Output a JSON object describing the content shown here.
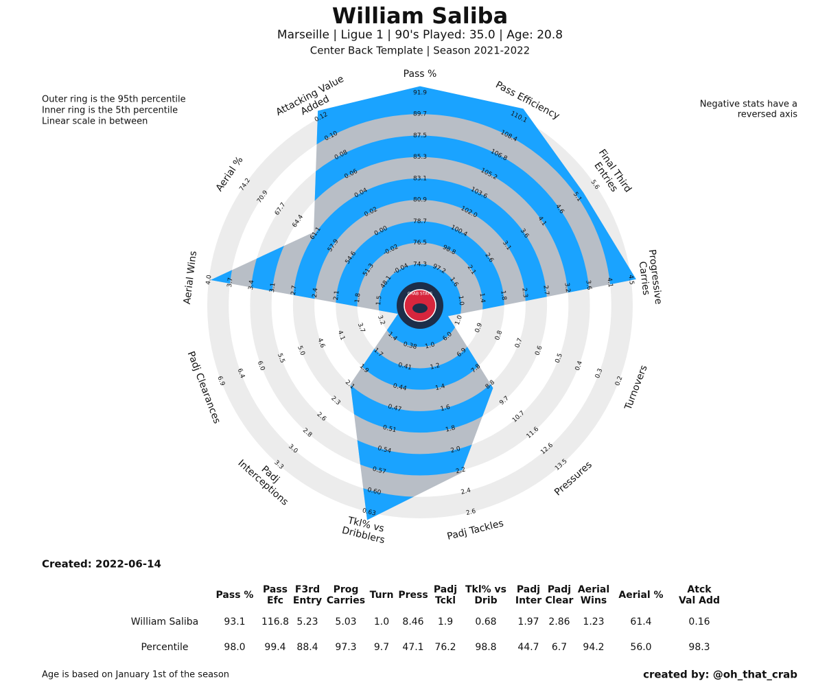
{
  "chart_data": {
    "type": "radar",
    "title": "William Saliba",
    "subtitle": "Marseille  | Ligue 1 | 90's Played: 35.0 | Age: 20.8",
    "subtitle2": "Center Back Template | Season 2021-2022",
    "notes_left": [
      "Outer ring is the 95th percentile",
      "Inner ring is the 5th percentile",
      "Linear scale in between"
    ],
    "notes_right": [
      "Negative stats have a",
      "reversed axis"
    ],
    "logo_text": "CRAB STATS",
    "rlim": [
      5,
      95
    ],
    "colors": {
      "fill_a": "#1aa3ff",
      "fill_b": "#b8bec6",
      "ring": "#ececec"
    },
    "categories": [
      [
        "Pass %"
      ],
      [
        "Pass Efficiency"
      ],
      [
        "Final Third",
        "Entries"
      ],
      [
        "Progressive",
        "Carries"
      ],
      [
        "Turnovers"
      ],
      [
        "Pressures"
      ],
      [
        "Padj Tackles"
      ],
      [
        "Tkl% vs",
        "Dribblers"
      ],
      [
        "Padj",
        "Interceptions"
      ],
      [
        "Padj Clearances"
      ],
      [
        "Aerial Wins"
      ],
      [
        "Aerial %"
      ],
      [
        "Attacking Value",
        "Added"
      ]
    ],
    "ring_ticks": [
      [
        74.3,
        76.5,
        78.7,
        80.9,
        83.1,
        85.3,
        87.5,
        89.7,
        91.9
      ],
      [
        97.2,
        98.8,
        100.4,
        {
          "value": 102,
          "label": "102.0"
        },
        103.6,
        105.2,
        106.8,
        108.4,
        110.1
      ],
      [
        1.6,
        2.1,
        2.6,
        3.1,
        3.6,
        4.1,
        4.6,
        5.1,
        5.6
      ],
      [
        {
          "value": 1,
          "label": "1.0"
        },
        1.4,
        1.8,
        2.3,
        2.7,
        3.2,
        3.6,
        4.1,
        4.5
      ],
      [
        {
          "value": 1,
          "label": "1.0"
        },
        0.9,
        0.8,
        0.7,
        0.6,
        0.5,
        0.4,
        0.3,
        0.2
      ],
      [
        {
          "value": 6,
          "label": "6.0"
        },
        6.9,
        7.8,
        8.8,
        9.7,
        10.7,
        11.6,
        12.6,
        13.5
      ],
      [
        {
          "value": 1,
          "label": "1.0"
        },
        1.2,
        1.4,
        1.6,
        1.8,
        {
          "value": 2,
          "label": "2.0"
        },
        2.2,
        2.4,
        2.6
      ],
      [
        0.38,
        0.41,
        0.44,
        0.47,
        0.51,
        0.54,
        0.57,
        {
          "value": 0.6,
          "label": "0.60"
        },
        0.63
      ],
      [
        1.4,
        1.7,
        1.9,
        2.1,
        2.3,
        2.6,
        2.8,
        {
          "value": 3,
          "label": "3.0"
        },
        3.3
      ],
      [
        3.2,
        3.7,
        4.1,
        4.6,
        {
          "value": 5,
          "label": "5.0"
        },
        5.5,
        {
          "value": 6,
          "label": "6.0"
        },
        6.4,
        6.9
      ],
      [
        1.5,
        1.8,
        2.1,
        2.4,
        2.7,
        3.1,
        3.4,
        3.7,
        {
          "value": 4,
          "label": "4.0"
        }
      ],
      [
        48.1,
        51.3,
        54.6,
        57.9,
        61.1,
        64.4,
        67.7,
        70.9,
        74.2
      ],
      [
        -0.04,
        -0.02,
        {
          "value": 0,
          "label": "0.00"
        },
        0.02,
        0.04,
        0.06,
        0.08,
        {
          "value": 0.1,
          "label": "0.10"
        },
        0.12
      ]
    ],
    "values": [
      98.0,
      99.4,
      88.4,
      97.3,
      9.7,
      47.1,
      76.2,
      98.8,
      44.7,
      6.7,
      94.2,
      56.0,
      98.3
    ],
    "value_labels": [
      "98.0",
      "99.4",
      "88.4",
      "97.3",
      "9.7",
      "47.1",
      "76.2",
      "98.8",
      "44.7",
      "6.7",
      "94.2",
      "56.0",
      "98.3"
    ]
  },
  "created": "Created: 2022-06-14",
  "table": {
    "headers": [
      [
        "Pass %"
      ],
      [
        "Pass",
        "Efc"
      ],
      [
        "F3rd",
        "Entry"
      ],
      [
        "Prog",
        "Carries"
      ],
      [
        "Turn"
      ],
      [
        "Press"
      ],
      [
        "Padj",
        "Tckl"
      ],
      [
        "Tkl% vs",
        "Drib"
      ],
      [
        "Padj",
        "Inter"
      ],
      [
        "Padj",
        "Clear"
      ],
      [
        "Aerial",
        "Wins"
      ],
      [
        "Aerial %"
      ],
      [
        "Atck",
        "Val Add"
      ]
    ],
    "row_labels": [
      "William Saliba",
      "Percentile"
    ],
    "player_row": [
      "93.1",
      "116.8",
      "5.23",
      "5.03",
      "1.0",
      "8.46",
      "1.9",
      "0.68",
      "1.97",
      "2.86",
      "1.23",
      "61.4",
      "0.16"
    ]
  },
  "footnote": "Age is based on January 1st of the season",
  "credit": "created by: @oh_that_crab"
}
